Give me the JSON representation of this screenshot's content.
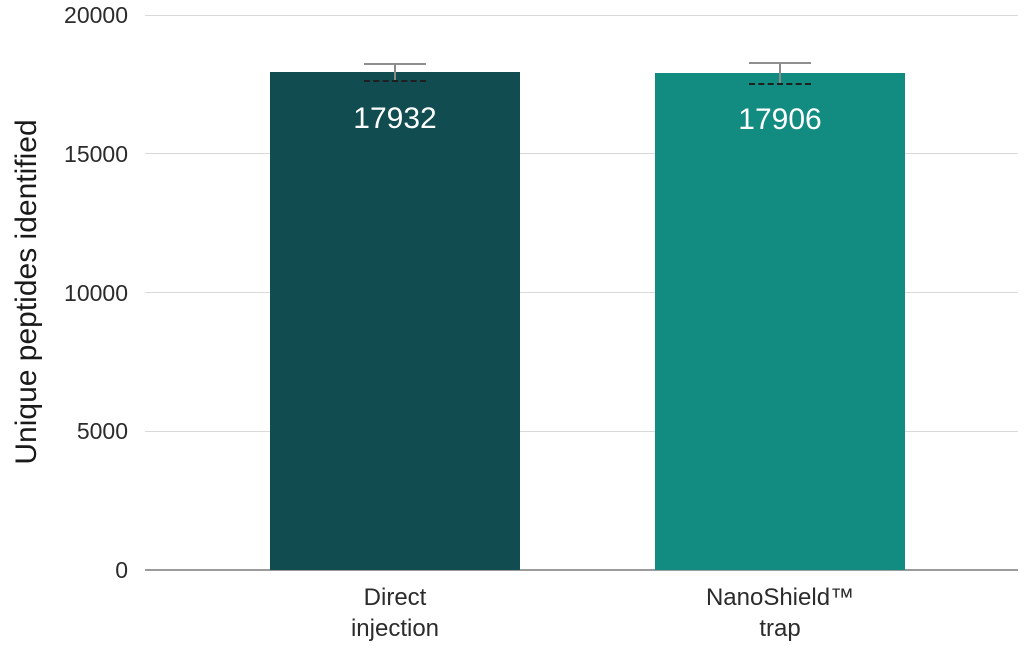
{
  "chart_data": {
    "type": "bar",
    "title": "",
    "ylabel": "Unique peptides identified",
    "xlabel": "",
    "categories": [
      [
        "Direct",
        "injection"
      ],
      [
        "NanoShield™",
        "trap"
      ]
    ],
    "values": [
      17932,
      17906
    ],
    "errors": [
      300,
      380
    ],
    "bar_colors": [
      "#114D50",
      "#128C80"
    ],
    "ylim": [
      0,
      20000
    ],
    "yticks": [
      0,
      5000,
      10000,
      15000,
      20000
    ],
    "grid": true,
    "legend": null
  },
  "colors": {
    "background": "#FFFFFF",
    "gridline": "#D9D9D9",
    "axis_line": "#9B9B9B",
    "tick_text": "#2B2B2B",
    "axis_title_text": "#1A1A1A",
    "value_label": "#FFFFFF",
    "error_line": "#8A8A8A",
    "error_cap_top": "#8F8F8F",
    "error_cap_bottom": "#1F1F1F"
  }
}
